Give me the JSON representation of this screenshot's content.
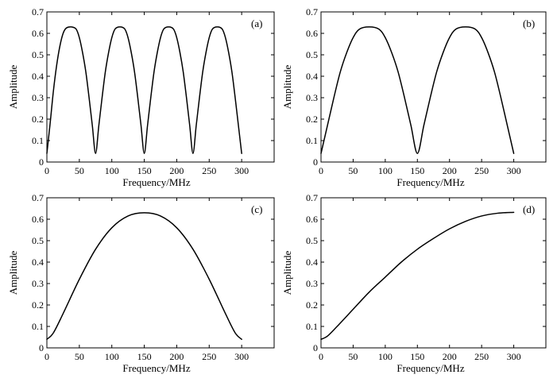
{
  "figure": {
    "background": "#ffffff",
    "line_color": "#000000"
  },
  "chart_data": [
    {
      "type": "line",
      "panel_label": "(a)",
      "xlabel": "Frequency/MHz",
      "ylabel": "Amplitude",
      "xlim": [
        0,
        350
      ],
      "ylim": [
        0,
        0.7
      ],
      "xticks": [
        0,
        50,
        100,
        150,
        200,
        250,
        300
      ],
      "yticks": [
        0,
        0.1,
        0.2,
        0.3,
        0.4,
        0.5,
        0.6,
        0.7
      ],
      "xtick_labels": [
        "0",
        "50",
        "100",
        "150",
        "200",
        "250",
        "300"
      ],
      "ytick_labels": [
        "0",
        "0.1",
        "0.2",
        "0.3",
        "0.4",
        "0.5",
        "0.6",
        "0.7"
      ],
      "grid": false,
      "series": [
        {
          "x": [
            0,
            5,
            10,
            15,
            20,
            25,
            30,
            37.5,
            45,
            50,
            55,
            60,
            65,
            70,
            75,
            80,
            85,
            90,
            95,
            100,
            105,
            112.5,
            120,
            125,
            130,
            135,
            140,
            145,
            150,
            155,
            160,
            165,
            170,
            175,
            180,
            187.5,
            195,
            200,
            205,
            210,
            215,
            220,
            225,
            230,
            235,
            240,
            245,
            250,
            255,
            262.5,
            270,
            275,
            280,
            285,
            290,
            295,
            300
          ],
          "y": [
            0.04,
            0.18,
            0.33,
            0.45,
            0.54,
            0.6,
            0.625,
            0.63,
            0.62,
            0.58,
            0.51,
            0.42,
            0.3,
            0.17,
            0.04,
            0.17,
            0.3,
            0.42,
            0.51,
            0.58,
            0.62,
            0.63,
            0.62,
            0.58,
            0.51,
            0.42,
            0.3,
            0.17,
            0.04,
            0.17,
            0.3,
            0.42,
            0.51,
            0.58,
            0.62,
            0.63,
            0.62,
            0.58,
            0.51,
            0.42,
            0.3,
            0.17,
            0.04,
            0.17,
            0.3,
            0.42,
            0.51,
            0.58,
            0.62,
            0.63,
            0.62,
            0.58,
            0.51,
            0.42,
            0.3,
            0.17,
            0.04
          ]
        }
      ]
    },
    {
      "type": "line",
      "panel_label": "(b)",
      "xlabel": "Frequency/MHz",
      "ylabel": "Amplitude",
      "xlim": [
        0,
        350
      ],
      "ylim": [
        0,
        0.7
      ],
      "xticks": [
        0,
        50,
        100,
        150,
        200,
        250,
        300
      ],
      "yticks": [
        0,
        0.1,
        0.2,
        0.3,
        0.4,
        0.5,
        0.6,
        0.7
      ],
      "xtick_labels": [
        "0",
        "50",
        "100",
        "150",
        "200",
        "250",
        "300"
      ],
      "ytick_labels": [
        "0",
        "0.1",
        "0.2",
        "0.3",
        "0.4",
        "0.5",
        "0.6",
        "0.7"
      ],
      "grid": false,
      "series": [
        {
          "x": [
            0,
            10,
            20,
            30,
            40,
            50,
            60,
            75,
            90,
            100,
            110,
            120,
            130,
            140,
            150,
            160,
            170,
            180,
            190,
            200,
            210,
            225,
            240,
            250,
            260,
            270,
            280,
            290,
            300
          ],
          "y": [
            0.04,
            0.17,
            0.3,
            0.42,
            0.51,
            0.58,
            0.62,
            0.63,
            0.62,
            0.58,
            0.51,
            0.42,
            0.3,
            0.17,
            0.04,
            0.17,
            0.3,
            0.42,
            0.51,
            0.58,
            0.62,
            0.63,
            0.62,
            0.58,
            0.51,
            0.42,
            0.3,
            0.17,
            0.04
          ]
        }
      ]
    },
    {
      "type": "line",
      "panel_label": "(c)",
      "xlabel": "Frequency/MHz",
      "ylabel": "Amplitude",
      "xlim": [
        0,
        350
      ],
      "ylim": [
        0,
        0.7
      ],
      "xticks": [
        0,
        50,
        100,
        150,
        200,
        250,
        300
      ],
      "yticks": [
        0,
        0.1,
        0.2,
        0.3,
        0.4,
        0.5,
        0.6,
        0.7
      ],
      "xtick_labels": [
        "0",
        "50",
        "100",
        "150",
        "200",
        "250",
        "300"
      ],
      "ytick_labels": [
        "0",
        "0.1",
        "0.2",
        "0.3",
        "0.4",
        "0.5",
        "0.6",
        "0.7"
      ],
      "grid": false,
      "series": [
        {
          "x": [
            0,
            10,
            25,
            50,
            75,
            100,
            125,
            150,
            175,
            200,
            225,
            250,
            275,
            290,
            300
          ],
          "y": [
            0.04,
            0.07,
            0.16,
            0.32,
            0.46,
            0.56,
            0.615,
            0.63,
            0.615,
            0.56,
            0.46,
            0.32,
            0.16,
            0.07,
            0.04
          ]
        }
      ]
    },
    {
      "type": "line",
      "panel_label": "(d)",
      "xlabel": "Frequency/MHz",
      "ylabel": "Amplitude",
      "xlim": [
        0,
        350
      ],
      "ylim": [
        0,
        0.7
      ],
      "xticks": [
        0,
        50,
        100,
        150,
        200,
        250,
        300
      ],
      "yticks": [
        0,
        0.1,
        0.2,
        0.3,
        0.4,
        0.5,
        0.6,
        0.7
      ],
      "xtick_labels": [
        "0",
        "50",
        "100",
        "150",
        "200",
        "250",
        "300"
      ],
      "ytick_labels": [
        "0",
        "0.1",
        "0.2",
        "0.3",
        "0.4",
        "0.5",
        "0.6",
        "0.7"
      ],
      "grid": false,
      "series": [
        {
          "x": [
            0,
            10,
            25,
            50,
            75,
            100,
            125,
            150,
            175,
            200,
            225,
            250,
            275,
            300
          ],
          "y": [
            0.04,
            0.055,
            0.1,
            0.18,
            0.26,
            0.33,
            0.4,
            0.46,
            0.51,
            0.555,
            0.59,
            0.615,
            0.628,
            0.632
          ]
        }
      ]
    }
  ]
}
